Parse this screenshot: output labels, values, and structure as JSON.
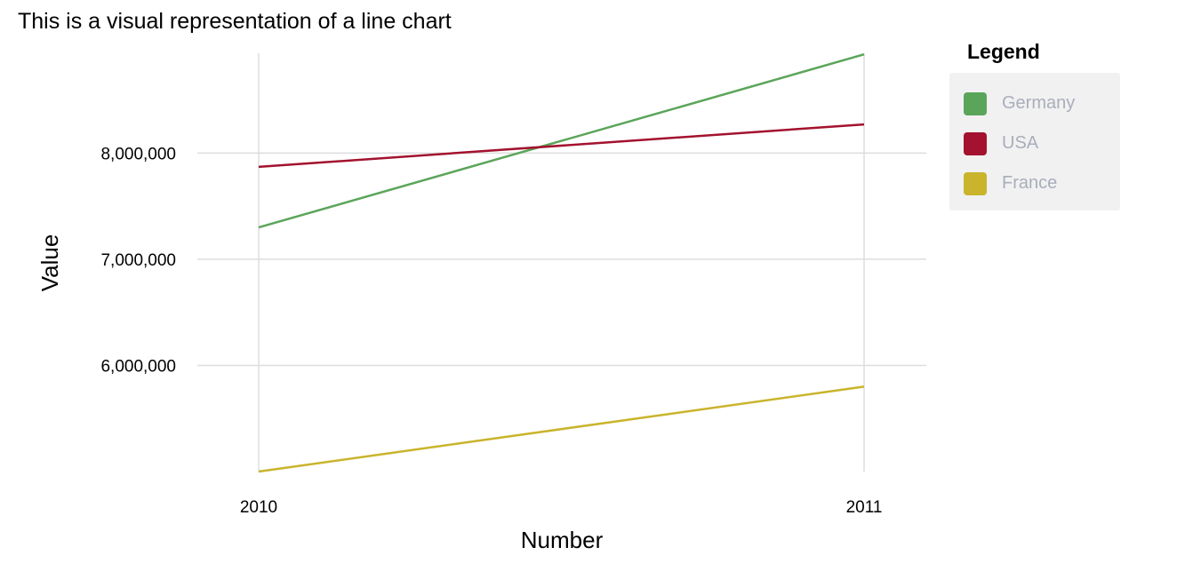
{
  "chart_data": {
    "type": "line",
    "title": "This is a visual representation of a line chart",
    "xlabel": "Number",
    "ylabel": "Value",
    "x": [
      "2010",
      "2011"
    ],
    "y_ticks": [
      "6,000,000",
      "7,000,000",
      "8,000,000"
    ],
    "y_tick_values": [
      6000000,
      7000000,
      8000000
    ],
    "ylim": [
      5000000,
      8940000
    ],
    "grid": true,
    "legend": {
      "title": "Legend",
      "position": "right"
    },
    "series": [
      {
        "name": "Germany",
        "color": "#5ba55a",
        "values": [
          7300000,
          8930000
        ]
      },
      {
        "name": "USA",
        "color": "#a3122e",
        "values": [
          7870000,
          8270000
        ]
      },
      {
        "name": "France",
        "color": "#c9b42c",
        "values": [
          5000000,
          5800000
        ]
      }
    ]
  }
}
